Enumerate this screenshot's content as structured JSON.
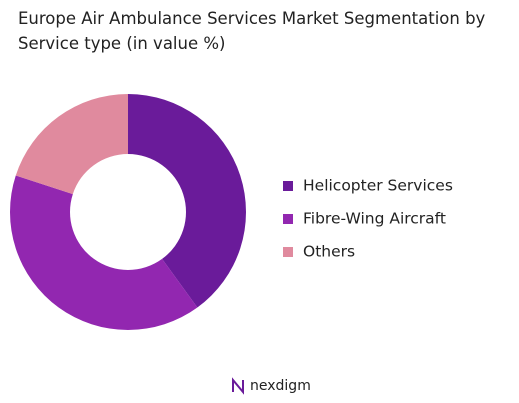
{
  "chart_data": {
    "type": "donut",
    "title": "Europe Air Ambulance Services Market Segmentation by Service type (in value %)",
    "categories": [
      "Helicopter Services",
      "Fibre-Wing Aircraft",
      "Others"
    ],
    "values": [
      40,
      40,
      20
    ],
    "colors": [
      "#6a1b9a",
      "#9227b0",
      "#e08a9e"
    ],
    "legend": "right"
  },
  "brand": "nexdigm"
}
